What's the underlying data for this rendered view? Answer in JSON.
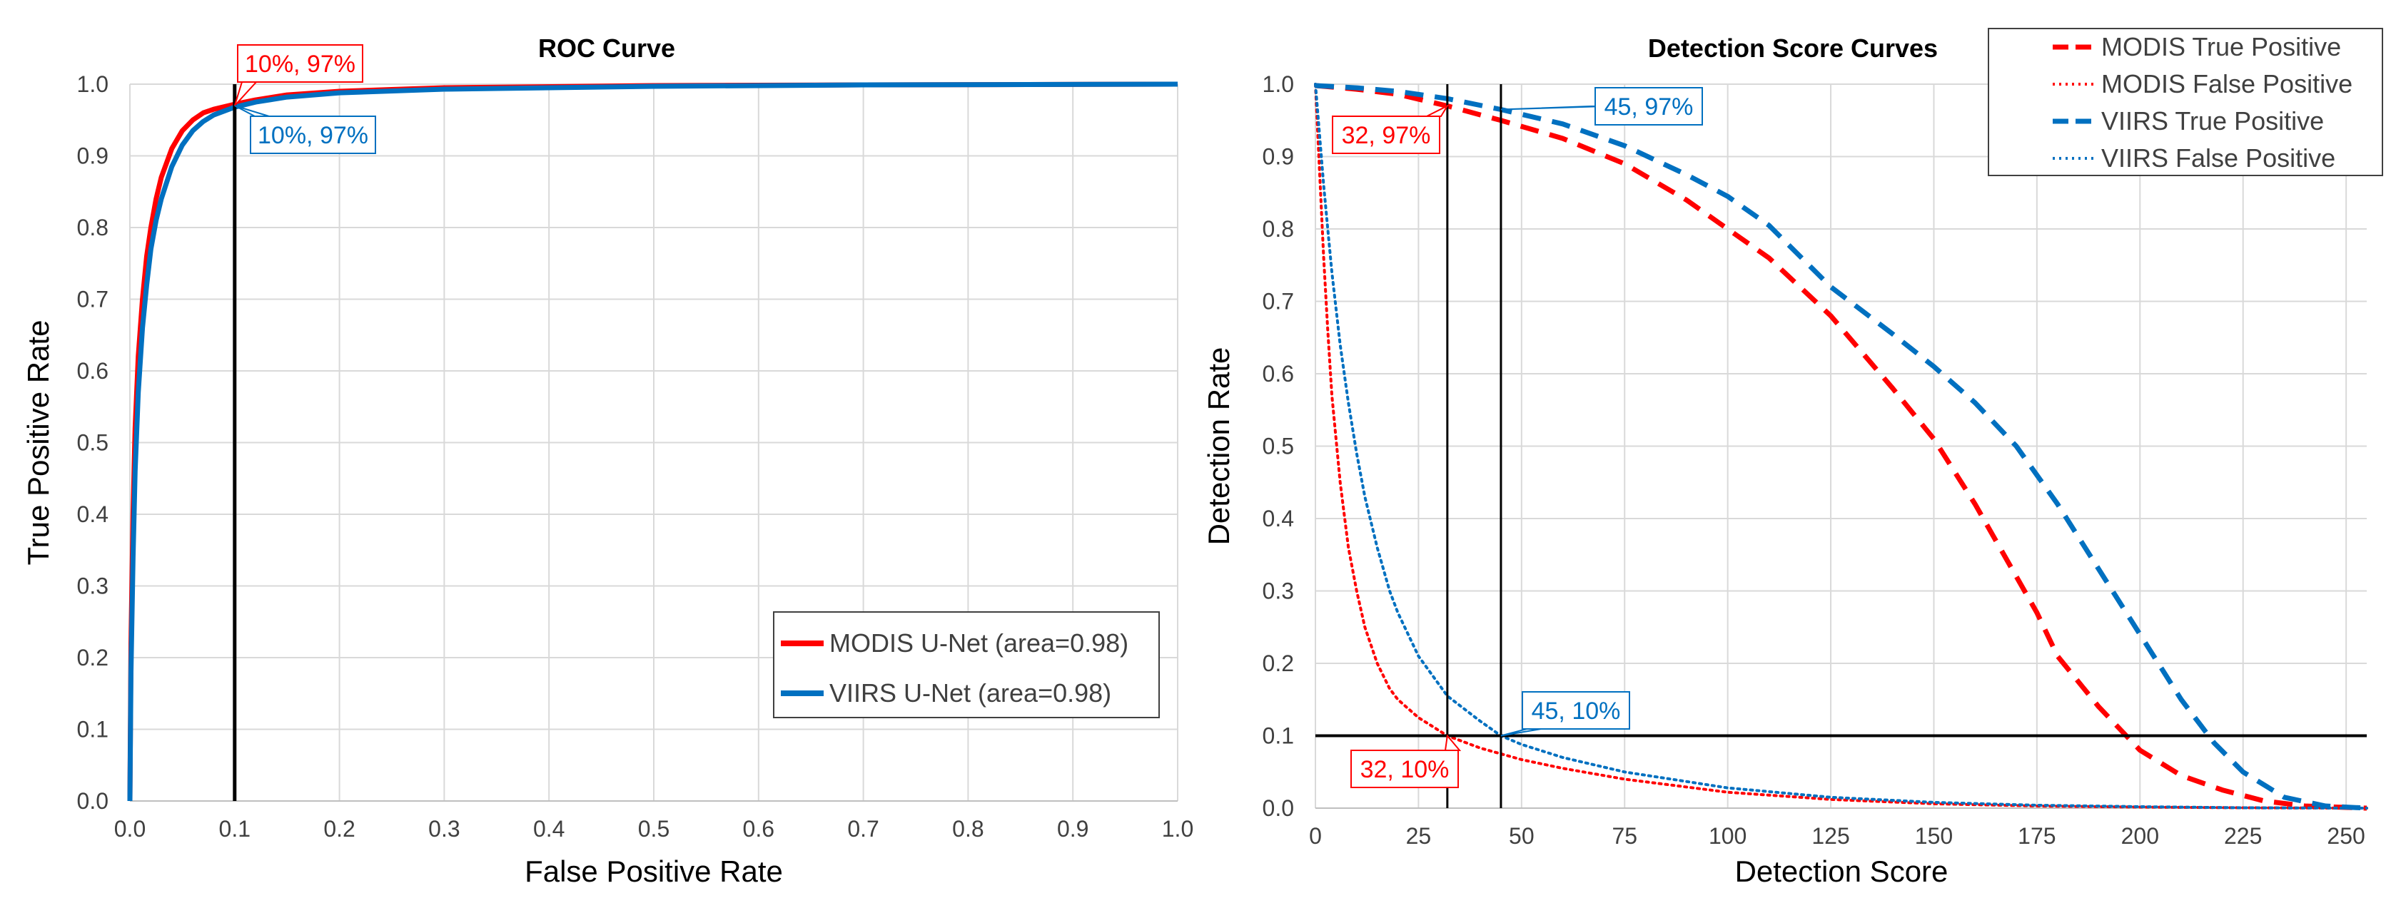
{
  "chart_data": [
    {
      "type": "line",
      "title": "ROC Curve",
      "xlabel": "False Positive Rate",
      "ylabel": "True Positive Rate",
      "xlim": [
        0,
        1
      ],
      "ylim": [
        0,
        1
      ],
      "xticks": [
        0,
        0.1,
        0.2,
        0.3,
        0.4,
        0.5,
        0.6,
        0.7,
        0.8,
        0.9,
        1
      ],
      "yticks": [
        0,
        0.1,
        0.2,
        0.3,
        0.4,
        0.5,
        0.6,
        0.7,
        0.8,
        0.9,
        1
      ],
      "xtick_labels": [
        "0.0",
        "0.1",
        "0.2",
        "0.3",
        "0.4",
        "0.5",
        "0.6",
        "0.7",
        "0.8",
        "0.9",
        "1.0"
      ],
      "ytick_labels": [
        "0.0",
        "0.1",
        "0.2",
        "0.3",
        "0.4",
        "0.5",
        "0.6",
        "0.7",
        "0.8",
        "0.9",
        "1.0"
      ],
      "grid": true,
      "legend_position": "bottom-right",
      "series": [
        {
          "name": "MODIS U-Net (area=0.98)",
          "color": "#ff0000",
          "style": "solid",
          "x": [
            0,
            0.001,
            0.003,
            0.005,
            0.008,
            0.012,
            0.016,
            0.02,
            0.025,
            0.03,
            0.04,
            0.05,
            0.06,
            0.07,
            0.08,
            0.1,
            0.12,
            0.15,
            0.2,
            0.3,
            0.5,
            0.7,
            1
          ],
          "y": [
            0,
            0.22,
            0.4,
            0.52,
            0.62,
            0.7,
            0.76,
            0.8,
            0.84,
            0.87,
            0.91,
            0.935,
            0.95,
            0.96,
            0.965,
            0.972,
            0.978,
            0.985,
            0.99,
            0.995,
            0.998,
            0.999,
            1
          ]
        },
        {
          "name": "VIIRS U-Net (area=0.98)",
          "color": "#0070c0",
          "style": "solid",
          "x": [
            0,
            0.001,
            0.003,
            0.005,
            0.008,
            0.012,
            0.016,
            0.02,
            0.025,
            0.03,
            0.04,
            0.05,
            0.06,
            0.07,
            0.08,
            0.1,
            0.12,
            0.15,
            0.2,
            0.3,
            0.5,
            0.7,
            1
          ],
          "y": [
            0,
            0.18,
            0.34,
            0.46,
            0.57,
            0.66,
            0.72,
            0.77,
            0.81,
            0.84,
            0.885,
            0.915,
            0.935,
            0.948,
            0.957,
            0.968,
            0.975,
            0.982,
            0.988,
            0.993,
            0.997,
            0.999,
            1
          ]
        }
      ],
      "reference_lines": [
        {
          "orientation": "vertical",
          "value": 0.1,
          "color": "#000000"
        }
      ],
      "annotations": [
        {
          "text": "10%, 97%",
          "color": "#ff0000",
          "x": 0.1,
          "y": 0.97
        },
        {
          "text": "10%, 97%",
          "color": "#0070c0",
          "x": 0.1,
          "y": 0.97
        }
      ]
    },
    {
      "type": "line",
      "title": "Detection Score Curves",
      "xlabel": "Detection Score",
      "ylabel": "Detection Rate",
      "xlim": [
        0,
        255
      ],
      "ylim": [
        0,
        1
      ],
      "xticks": [
        0,
        25,
        50,
        75,
        100,
        125,
        150,
        175,
        200,
        225,
        250
      ],
      "yticks": [
        0,
        0.1,
        0.2,
        0.3,
        0.4,
        0.5,
        0.6,
        0.7,
        0.8,
        0.9,
        1
      ],
      "xtick_labels": [
        "0",
        "25",
        "50",
        "75",
        "100",
        "125",
        "150",
        "175",
        "200",
        "225",
        "250"
      ],
      "ytick_labels": [
        "0.0",
        "0.1",
        "0.2",
        "0.3",
        "0.4",
        "0.5",
        "0.6",
        "0.7",
        "0.8",
        "0.9",
        "1.0"
      ],
      "grid": true,
      "legend_position": "top-right",
      "series": [
        {
          "name": "MODIS True Positive",
          "color": "#ff0000",
          "style": "dashed",
          "x": [
            0,
            10,
            20,
            32,
            45,
            60,
            75,
            90,
            100,
            110,
            125,
            140,
            150,
            160,
            170,
            175,
            180,
            190,
            200,
            210,
            220,
            230,
            240,
            250,
            255
          ],
          "y": [
            0.998,
            0.993,
            0.986,
            0.97,
            0.95,
            0.925,
            0.89,
            0.84,
            0.8,
            0.76,
            0.68,
            0.58,
            0.51,
            0.42,
            0.32,
            0.27,
            0.21,
            0.14,
            0.08,
            0.045,
            0.025,
            0.01,
            0.003,
            0.001,
            0
          ]
        },
        {
          "name": "MODIS False Positive",
          "color": "#ff0000",
          "style": "dotted",
          "x": [
            0,
            1,
            2,
            3,
            4,
            6,
            8,
            10,
            12,
            15,
            18,
            20,
            25,
            32,
            40,
            50,
            60,
            75,
            100,
            125,
            150,
            175,
            200,
            225,
            255
          ],
          "y": [
            1,
            0.88,
            0.76,
            0.66,
            0.57,
            0.45,
            0.36,
            0.3,
            0.25,
            0.2,
            0.165,
            0.15,
            0.125,
            0.1,
            0.083,
            0.067,
            0.055,
            0.04,
            0.022,
            0.012,
            0.006,
            0.003,
            0.0015,
            0.0005,
            0
          ]
        },
        {
          "name": "VIIRS True Positive",
          "color": "#0070c0",
          "style": "dashed",
          "x": [
            0,
            10,
            20,
            32,
            45,
            60,
            75,
            90,
            100,
            110,
            125,
            140,
            150,
            160,
            170,
            180,
            190,
            200,
            210,
            218,
            225,
            235,
            245,
            255
          ],
          "y": [
            0.998,
            0.995,
            0.99,
            0.98,
            0.965,
            0.945,
            0.915,
            0.875,
            0.845,
            0.805,
            0.72,
            0.655,
            0.61,
            0.56,
            0.5,
            0.42,
            0.33,
            0.24,
            0.15,
            0.09,
            0.05,
            0.015,
            0.003,
            0
          ]
        },
        {
          "name": "VIIRS False Positive",
          "color": "#0070c0",
          "style": "dotted",
          "x": [
            0,
            1,
            2,
            3,
            4,
            6,
            8,
            10,
            12,
            15,
            18,
            20,
            25,
            32,
            40,
            45,
            50,
            60,
            75,
            100,
            125,
            150,
            175,
            200,
            225,
            255
          ],
          "y": [
            1,
            0.93,
            0.86,
            0.8,
            0.74,
            0.64,
            0.56,
            0.49,
            0.43,
            0.36,
            0.3,
            0.27,
            0.21,
            0.155,
            0.12,
            0.1,
            0.088,
            0.07,
            0.05,
            0.028,
            0.015,
            0.008,
            0.004,
            0.002,
            0.0005,
            0
          ]
        }
      ],
      "reference_lines": [
        {
          "orientation": "vertical",
          "value": 32,
          "color": "#000000"
        },
        {
          "orientation": "vertical",
          "value": 45,
          "color": "#000000"
        },
        {
          "orientation": "horizontal",
          "value": 0.1,
          "color": "#000000"
        }
      ],
      "annotations": [
        {
          "text": "32, 97%",
          "color": "#ff0000",
          "x": 32,
          "y": 0.97
        },
        {
          "text": "45, 97%",
          "color": "#0070c0",
          "x": 45,
          "y": 0.965
        },
        {
          "text": "32, 10%",
          "color": "#ff0000",
          "x": 32,
          "y": 0.1
        },
        {
          "text": "45, 10%",
          "color": "#0070c0",
          "x": 45,
          "y": 0.1
        }
      ]
    }
  ]
}
